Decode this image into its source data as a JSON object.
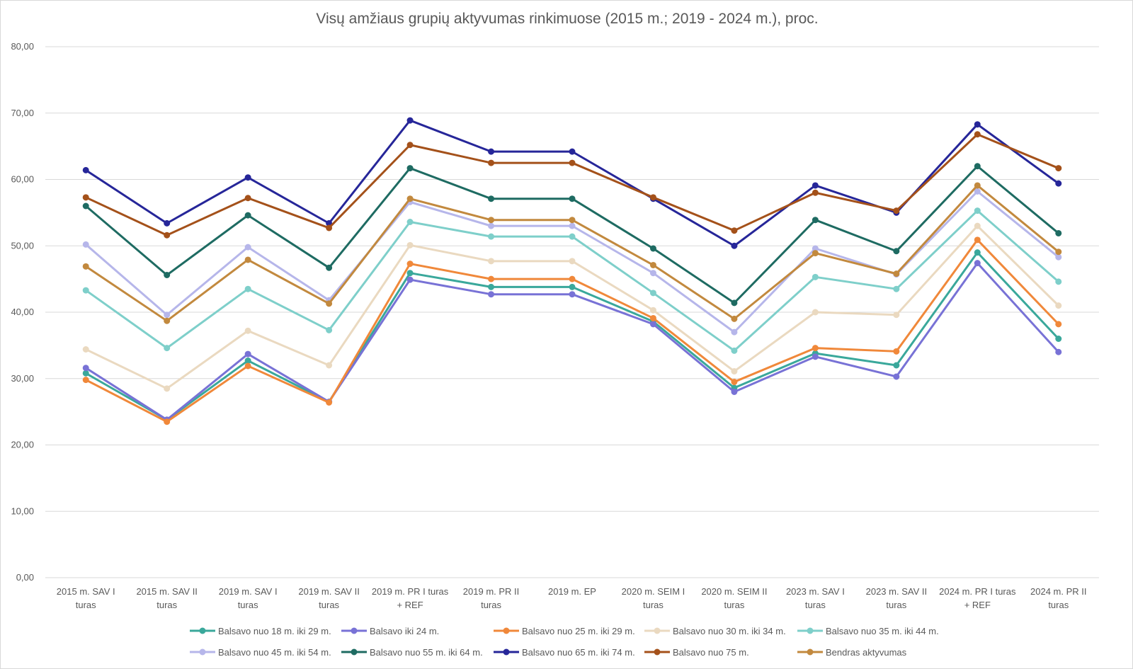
{
  "chart_data": {
    "type": "line",
    "title": "Visų amžiaus grupių aktyvumas rinkimuose (2015 m.; 2019 - 2024 m.), proc.",
    "xlabel": "",
    "ylabel": "",
    "ylim": [
      0,
      80
    ],
    "yticks": [
      "0,00",
      "10,00",
      "20,00",
      "30,00",
      "40,00",
      "50,00",
      "60,00",
      "70,00",
      "80,00"
    ],
    "grid": true,
    "legend_position": "bottom",
    "categories": [
      [
        "2015 m. SAV I",
        "turas"
      ],
      [
        "2015 m. SAV II",
        "turas"
      ],
      [
        "2019 m. SAV I",
        "turas"
      ],
      [
        "2019 m. SAV II",
        "turas"
      ],
      [
        "2019 m. PR I turas",
        "+ REF"
      ],
      [
        "2019 m. PR II",
        "turas"
      ],
      [
        "2019 m. EP"
      ],
      [
        "2020 m. SEIM I",
        "turas"
      ],
      [
        "2020 m. SEIM II",
        "turas"
      ],
      [
        "2023 m. SAV I",
        "turas"
      ],
      [
        "2023 m. SAV II",
        "turas"
      ],
      [
        "2024 m. PR I turas",
        "+ REF"
      ],
      [
        "2024 m. PR II",
        "turas"
      ]
    ],
    "series": [
      {
        "name": "Balsavo nuo 18 m. iki 29 m.",
        "color": "#3aa89b",
        "values": [
          30.8,
          23.8,
          32.7,
          26.5,
          45.9,
          43.8,
          43.8,
          38.6,
          28.6,
          33.8,
          32.0,
          49.0,
          36.0
        ]
      },
      {
        "name": "Balsavo iki 24 m.",
        "color": "#7872d6",
        "values": [
          31.6,
          23.8,
          33.7,
          26.5,
          44.9,
          42.7,
          42.7,
          38.2,
          28.0,
          33.3,
          30.3,
          47.4,
          34.0
        ]
      },
      {
        "name": "Balsavo nuo 25 m. iki 29 m.",
        "color": "#f0883a",
        "values": [
          29.8,
          23.5,
          31.9,
          26.4,
          47.3,
          45.0,
          45.0,
          39.1,
          29.5,
          34.6,
          34.1,
          50.9,
          38.2
        ]
      },
      {
        "name": "Balsavo nuo 30 m. iki 34 m.",
        "color": "#ead9c0",
        "values": [
          34.4,
          28.5,
          37.2,
          32.0,
          50.1,
          47.7,
          47.7,
          40.3,
          31.1,
          40.0,
          39.6,
          53.0,
          41.0
        ]
      },
      {
        "name": "Balsavo nuo 35 m. iki 44 m.",
        "color": "#7ecfca",
        "values": [
          43.3,
          34.6,
          43.5,
          37.3,
          53.6,
          51.4,
          51.4,
          42.9,
          34.2,
          45.3,
          43.5,
          55.3,
          44.6
        ]
      },
      {
        "name": "Balsavo nuo 45 m. iki 54 m.",
        "color": "#b6b6ea",
        "values": [
          50.2,
          39.6,
          49.8,
          41.8,
          56.6,
          53.0,
          53.0,
          45.9,
          37.0,
          49.6,
          45.7,
          58.2,
          48.3
        ]
      },
      {
        "name": "Balsavo nuo 55 m. iki 64 m.",
        "color": "#1e6b62",
        "values": [
          56.0,
          45.6,
          54.6,
          46.7,
          61.7,
          57.1,
          57.1,
          49.6,
          41.4,
          53.9,
          49.2,
          62.0,
          51.9
        ]
      },
      {
        "name": "Balsavo nuo 65 m. iki 74 m.",
        "color": "#262699",
        "values": [
          61.4,
          53.4,
          60.3,
          53.4,
          68.9,
          64.2,
          64.2,
          57.1,
          50.0,
          59.1,
          55.0,
          68.3,
          59.4
        ]
      },
      {
        "name": "Balsavo nuo 75 m.",
        "color": "#a4511a",
        "values": [
          57.3,
          51.6,
          57.2,
          52.7,
          65.2,
          62.5,
          62.5,
          57.3,
          52.3,
          58.0,
          55.3,
          66.8,
          61.7
        ]
      },
      {
        "name": "Bendras aktyvumas",
        "color": "#c2893e",
        "values": [
          46.9,
          38.7,
          47.9,
          41.3,
          57.1,
          53.9,
          53.9,
          47.1,
          39.0,
          48.9,
          45.8,
          59.1,
          49.1
        ]
      }
    ]
  }
}
